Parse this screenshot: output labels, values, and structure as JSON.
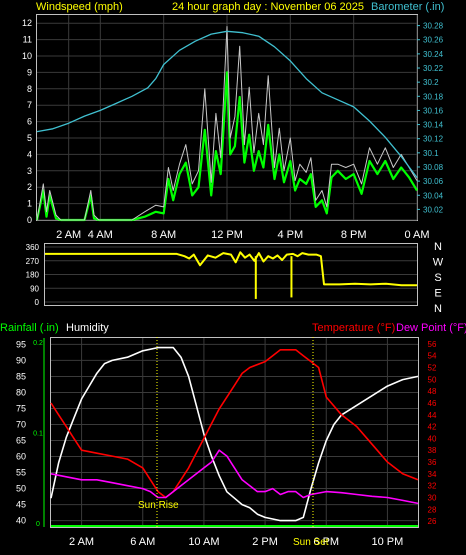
{
  "header": {
    "left": "Windspeed (mph)",
    "center": "24 hour graph day : November 06 2025",
    "right": "Barometer (.in)"
  },
  "colors": {
    "background": "#000000",
    "frame": "#c0c0c0",
    "grid": "#3a3a3a",
    "windspeed": "#c8c8c8",
    "gust": "#00ff00",
    "barometer": "#40c0d0",
    "direction": "#ffff00",
    "rainfall": "#00ff00",
    "humidity": "#ffffff",
    "temperature": "#ff0000",
    "dewpoint": "#ff00ff",
    "annotation": "#ffff00",
    "header_text": "#ffff00",
    "right_axis_text": "#40c0d0"
  },
  "lower_header": {
    "rainfall": "Rainfall (.in)",
    "humidity": "Humidity",
    "temperature": "Temperature (°F)",
    "dewpoint": "Dew Point (°F)"
  },
  "annotations": {
    "sunrise": "Sun Rise",
    "sunset": "Sun Set"
  },
  "chart_data": [
    {
      "type": "line",
      "name": "wind",
      "xlim": [
        0,
        24
      ],
      "xticks": [
        2,
        4,
        8,
        12,
        16,
        20,
        24
      ],
      "xticklabels": [
        "2 AM",
        "4 AM",
        "8 AM",
        "12 PM",
        "4 PM",
        "8 PM",
        "0 AM"
      ],
      "ylim_left": [
        0,
        12.5
      ],
      "yticks_left": [
        0,
        1,
        2,
        3,
        4,
        5,
        6,
        7,
        8,
        9,
        10,
        11,
        12
      ],
      "ylim_right": [
        30.005,
        30.295
      ],
      "yticks_right": [
        "30.02",
        "30.04",
        "30.06",
        "30.08",
        "30.1",
        "30.12",
        "30.14",
        "30.16",
        "30.18",
        "30.2",
        "30.22",
        "30.24",
        "30.26",
        "30.28"
      ],
      "series": [
        {
          "key": "gust",
          "axis": "left",
          "x": [
            0,
            0.4,
            0.6,
            0.8,
            1.2,
            1.5,
            2.0,
            2.5,
            3.0,
            3.4,
            3.6,
            3.9,
            4.2,
            4.8,
            5.4,
            6.0,
            6.8,
            7.5,
            8.0,
            8.3,
            8.6,
            9.0,
            9.4,
            9.8,
            10.2,
            10.6,
            11.0,
            11.3,
            11.6,
            12.0,
            12.2,
            12.5,
            12.8,
            13.1,
            13.4,
            13.7,
            14.0,
            14.3,
            14.6,
            15.0,
            15.3,
            15.6,
            16.0,
            16.3,
            16.6,
            17.0,
            17.3,
            17.6,
            18.0,
            18.3,
            18.6,
            19.0,
            19.5,
            20.0,
            20.5,
            21.0,
            21.5,
            22.0,
            22.5,
            23.0,
            23.5,
            24.0
          ],
          "y": [
            0,
            1.8,
            0.2,
            1.5,
            0.1,
            0,
            0,
            0,
            0,
            1.5,
            0.1,
            0,
            0,
            0,
            0,
            0,
            0.2,
            0.5,
            0.4,
            2.5,
            1.2,
            2.8,
            3.5,
            1.5,
            2.0,
            5.5,
            1.5,
            4.2,
            2.8,
            9.0,
            4.0,
            4.5,
            7.5,
            3.5,
            5.2,
            3.0,
            4.2,
            3.2,
            5.8,
            2.5,
            4.0,
            2.3,
            3.6,
            1.8,
            2.5,
            2.2,
            2.8,
            0.8,
            1.2,
            0.4,
            2.6,
            3.0,
            2.5,
            2.8,
            1.6,
            3.6,
            2.8,
            3.6,
            2.5,
            3.2,
            2.6,
            1.8
          ]
        },
        {
          "key": "windspeed",
          "axis": "left",
          "x": [
            0,
            0.4,
            0.6,
            0.8,
            1.2,
            1.5,
            2.0,
            2.5,
            3.0,
            3.4,
            3.6,
            3.9,
            4.2,
            4.8,
            5.4,
            6.0,
            6.8,
            7.5,
            8.0,
            8.3,
            8.6,
            9.0,
            9.4,
            9.8,
            10.2,
            10.6,
            11.0,
            11.3,
            11.6,
            12.0,
            12.2,
            12.5,
            12.8,
            13.1,
            13.4,
            13.7,
            14.0,
            14.3,
            14.6,
            15.0,
            15.3,
            15.6,
            16.0,
            16.3,
            16.6,
            17.0,
            17.3,
            17.6,
            18.0,
            18.3,
            18.6,
            19.0,
            19.5,
            20.0,
            20.5,
            21.0,
            21.5,
            22.0,
            22.5,
            23.0,
            23.5,
            24.0
          ],
          "y": [
            0,
            2.2,
            0.5,
            1.8,
            0.3,
            0,
            0,
            0,
            0,
            1.8,
            0.3,
            0,
            0,
            0,
            0,
            0,
            0.5,
            0.9,
            0.8,
            3.2,
            1.8,
            3.4,
            4.6,
            2.2,
            3.0,
            8.0,
            2.3,
            6.5,
            3.8,
            11.8,
            5.0,
            6.3,
            10.6,
            4.6,
            8.1,
            4.1,
            6.5,
            4.6,
            8.8,
            3.2,
            5.6,
            3.0,
            5.0,
            2.4,
            3.4,
            2.9,
            3.8,
            1.2,
            1.8,
            0.8,
            3.4,
            3.4,
            3.2,
            3.4,
            2.2,
            4.4,
            3.4,
            4.4,
            3.2,
            4.0,
            3.2,
            2.4
          ]
        },
        {
          "key": "barometer",
          "axis": "right",
          "x": [
            0,
            1,
            2,
            3,
            4,
            5,
            6,
            7,
            7.5,
            8,
            9,
            10,
            11,
            12,
            13,
            14,
            15,
            16,
            17,
            18,
            19,
            20,
            21,
            22,
            23,
            24
          ],
          "y": [
            30.13,
            30.134,
            30.142,
            30.152,
            30.16,
            30.17,
            30.18,
            30.192,
            30.205,
            30.225,
            30.245,
            30.258,
            30.268,
            30.272,
            30.27,
            30.265,
            30.25,
            30.23,
            30.205,
            30.185,
            30.175,
            30.165,
            30.145,
            30.122,
            30.095,
            30.065
          ]
        }
      ]
    },
    {
      "type": "line",
      "name": "wind-direction",
      "xlim": [
        0,
        24
      ],
      "ylim": [
        0,
        360
      ],
      "yticks": [
        0,
        90,
        180,
        270,
        360
      ],
      "right_labels": [
        "N",
        "W",
        "S",
        "E",
        "N"
      ],
      "series": [
        {
          "key": "direction",
          "x": [
            0,
            2,
            4,
            6,
            8,
            8.5,
            9,
            9.3,
            9.6,
            10,
            10.5,
            11,
            11.5,
            12,
            12.3,
            12.6,
            12.9,
            13.2,
            13.5,
            13.8,
            14.1,
            14.4,
            14.7,
            15,
            15.3,
            15.6,
            16,
            16.3,
            16.6,
            17,
            17.5,
            17.8,
            18,
            19,
            20,
            21,
            22,
            23,
            24
          ],
          "y": [
            315,
            315,
            315,
            315,
            315,
            315,
            300,
            285,
            310,
            240,
            305,
            290,
            320,
            310,
            260,
            325,
            290,
            310,
            270,
            320,
            265,
            300,
            285,
            305,
            275,
            310,
            315,
            300,
            320,
            310,
            310,
            300,
            115,
            115,
            120,
            115,
            120,
            110,
            110
          ]
        }
      ]
    },
    {
      "type": "line",
      "name": "weather",
      "xlim": [
        0,
        24
      ],
      "xticks": [
        2,
        6,
        10,
        14,
        18,
        22
      ],
      "xticklabels": [
        "2 AM",
        "6 AM",
        "10 AM",
        "2 PM",
        "6 PM",
        "10 PM"
      ],
      "ylim_humidity": [
        38,
        97
      ],
      "yticks_humidity": [
        40,
        45,
        50,
        55,
        60,
        65,
        70,
        75,
        80,
        85,
        90,
        95
      ],
      "ylim_temperature": [
        25,
        57
      ],
      "yticks_temperature": [
        26,
        28,
        30,
        32,
        34,
        36,
        38,
        40,
        42,
        44,
        46,
        48,
        50,
        52,
        54,
        56
      ],
      "rain_ticks": [
        "0",
        "0.1",
        "0.2"
      ],
      "series": [
        {
          "key": "humidity",
          "axis": "humidity",
          "x": [
            0,
            0.5,
            1,
            1.5,
            2,
            2.5,
            3,
            3.5,
            4,
            5,
            6,
            7,
            8,
            8.5,
            9,
            9.5,
            10,
            10.5,
            11,
            11.5,
            12,
            12.5,
            13,
            13.5,
            14,
            15,
            16,
            16.5,
            17,
            17.5,
            18,
            18.5,
            19,
            20,
            21,
            22,
            23,
            24
          ],
          "y": [
            47,
            58,
            66,
            72,
            78,
            82,
            86,
            89,
            90,
            91,
            93,
            94,
            94,
            91,
            85,
            76,
            67,
            60,
            54,
            49,
            47,
            45,
            44,
            42,
            41,
            40,
            40,
            41,
            50,
            58,
            65,
            70,
            73,
            76,
            79,
            82,
            84,
            85
          ]
        },
        {
          "key": "temperature",
          "axis": "temperature",
          "x": [
            0,
            0.5,
            1,
            1.5,
            2,
            3,
            4,
            5,
            6,
            6.5,
            7,
            7.5,
            8,
            9,
            10,
            11,
            12,
            12.5,
            13,
            14,
            14.5,
            15,
            16,
            16.5,
            17,
            17.5,
            18,
            19,
            20,
            21,
            22,
            23,
            24
          ],
          "y": [
            46,
            44,
            42,
            40,
            38,
            37.5,
            37,
            36.5,
            35,
            33,
            31,
            30,
            31,
            35,
            40,
            45,
            49,
            51,
            52,
            53,
            54,
            55,
            55,
            54,
            53,
            52,
            47,
            44,
            42,
            39,
            36,
            34,
            33
          ]
        },
        {
          "key": "dewpoint",
          "axis": "temperature",
          "x": [
            0,
            1,
            2,
            3,
            4,
            5,
            6,
            6.5,
            7,
            7.5,
            8,
            9,
            10,
            10.5,
            11,
            11.5,
            12,
            12.5,
            13,
            13.5,
            14,
            14.5,
            15,
            15.5,
            16,
            16.5,
            17,
            18,
            19,
            20,
            21,
            22,
            23,
            24
          ],
          "y": [
            34,
            33.5,
            33,
            33,
            32.5,
            32,
            31.5,
            31,
            30,
            30,
            31,
            33,
            35,
            36,
            38,
            37,
            35,
            33,
            32,
            31,
            31,
            31.5,
            30.5,
            31,
            31,
            30,
            30.5,
            31,
            30.8,
            30.5,
            30.2,
            30,
            29.5,
            29
          ]
        }
      ]
    }
  ]
}
